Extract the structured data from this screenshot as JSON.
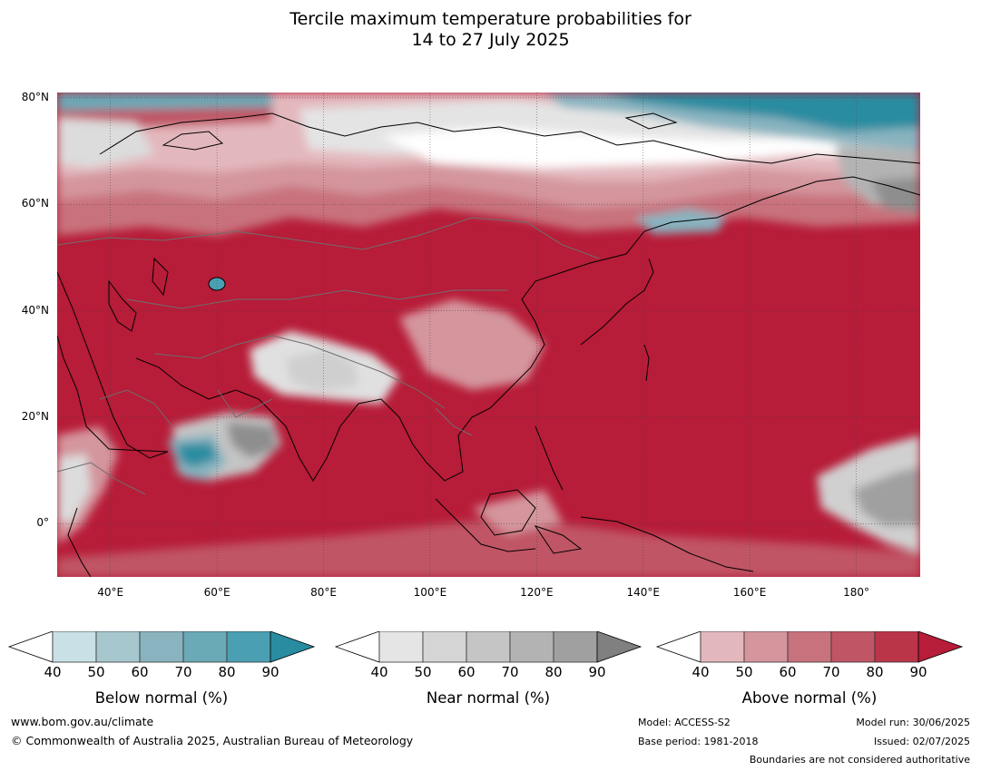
{
  "title_line1": "Tercile maximum temperature probabilities for",
  "title_line2": "14 to 27 July 2025",
  "map": {
    "lon_range": [
      30,
      192
    ],
    "lat_range": [
      -10,
      81
    ],
    "lat_ticks": [
      {
        "value": 80,
        "label": "80°N"
      },
      {
        "value": 60,
        "label": "60°N"
      },
      {
        "value": 40,
        "label": "40°N"
      },
      {
        "value": 20,
        "label": "20°N"
      },
      {
        "value": 0,
        "label": "0°"
      }
    ],
    "lon_ticks": [
      {
        "value": 40,
        "label": "40°E"
      },
      {
        "value": 60,
        "label": "60°E"
      },
      {
        "value": 80,
        "label": "80°E"
      },
      {
        "value": 100,
        "label": "100°E"
      },
      {
        "value": 120,
        "label": "120°E"
      },
      {
        "value": 140,
        "label": "140°E"
      },
      {
        "value": 160,
        "label": "160°E"
      },
      {
        "value": 180,
        "label": "180°"
      }
    ],
    "colors": {
      "above_dominant": "#b71c38",
      "near_light": "#e4e4e4",
      "near_dark": "#8e8e8e",
      "below_light": "#c9e0e6",
      "below_dark": "#2a8ca0"
    }
  },
  "legends": {
    "below": {
      "label": "Below normal (%)",
      "ticks": [
        "40",
        "50",
        "60",
        "70",
        "80",
        "90"
      ],
      "colors": [
        "#c9e0e6",
        "#a7c7ce",
        "#88b3bf",
        "#6aa9b6",
        "#4aa0b2",
        "#2a8ca0"
      ]
    },
    "near": {
      "label": "Near normal (%)",
      "ticks": [
        "40",
        "50",
        "60",
        "70",
        "80",
        "90"
      ],
      "colors": [
        "#e5e5e5",
        "#d5d5d5",
        "#c5c5c5",
        "#b3b3b3",
        "#a0a0a0",
        "#808080"
      ]
    },
    "above": {
      "label": "Above normal (%)",
      "ticks": [
        "40",
        "50",
        "60",
        "70",
        "80",
        "90"
      ],
      "colors": [
        "#e3b8bd",
        "#d4959d",
        "#c8727d",
        "#c05565",
        "#ba3548",
        "#b71c38"
      ]
    }
  },
  "footer": {
    "url": "www.bom.gov.au/climate",
    "copyright": "© Commonwealth of Australia 2025, Australian Bureau of Meteorology",
    "model": "Model: ACCESS-S2",
    "base_period": "Base period: 1981-2018",
    "model_run": "Model run: 30/06/2025",
    "issued": "Issued: 02/07/2025",
    "disclaimer": "Boundaries are not considered authoritative"
  }
}
